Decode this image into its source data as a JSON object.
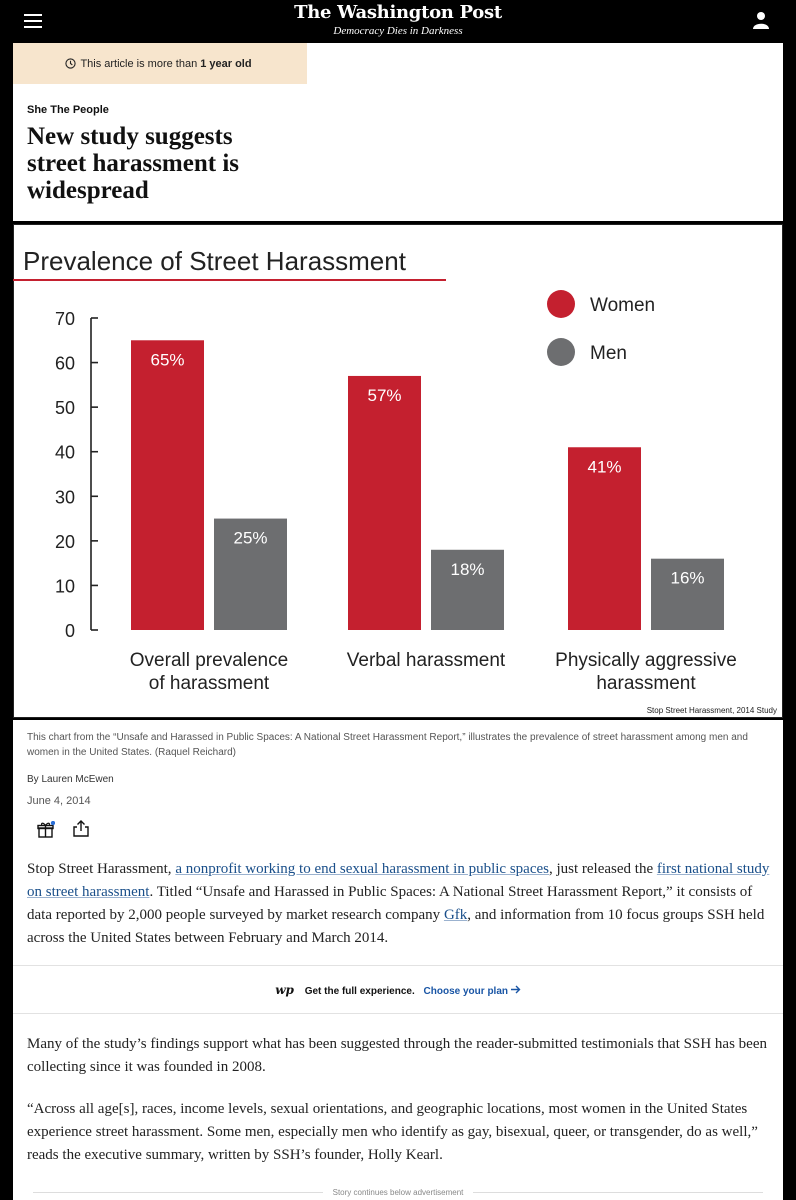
{
  "header": {
    "logo": "The Washington Post",
    "tagline": "Democracy Dies in Darkness"
  },
  "article": {
    "age_notice_prefix": "This article is more than",
    "age_notice_bold": "1 year old",
    "section": "She The People",
    "headline_lines": [
      "New study suggests",
      "street harassment is",
      "widespread"
    ],
    "caption": "This chart from the “Unsafe and Harassed in Public Spaces: A National Street Harassment Report,” illustrates the prevalence of street harassment among men and women in the United States. (Raquel Reichard)",
    "byline": "By Lauren McEwen",
    "date": "June 4, 2014",
    "p1": [
      {
        "t": "Stop Street Harassment, "
      },
      {
        "t": "a nonprofit working to end sexual harassment in public spaces",
        "link": true
      },
      {
        "t": ", just released the "
      },
      {
        "t": "first national study on street harassment",
        "link": true
      },
      {
        "t": ". Titled “Unsafe and Harassed in Public Spaces: A National Street Harassment Report,” it consists of data reported by 2,000 people surveyed by market research company "
      },
      {
        "t": "Gfk",
        "link": true
      },
      {
        "t": ", and information from 10 focus groups SSH held across the United States between February and March 2014."
      }
    ],
    "p2": "Many of the study’s findings support what has been suggested through the reader-submitted testimonials that SSH has been collecting since it was founded in 2008.",
    "p3": "“Across all age[s], races, income levels, sexual orientations, and geographic locations, most women in the United States experience street harassment. Some men, especially men who identify as gay, bisexual, queer, or transgender, do as well,” reads the executive summary, written by SSH’s founder, Holly Kearl."
  },
  "promo": {
    "mark": "wp",
    "text": "Get the full experience.",
    "cta": "Choose your plan"
  },
  "ad_label": "Story continues below advertisement",
  "icons": {
    "menu": "hamburger-icon",
    "profile": "user-icon",
    "clock": "clock-icon",
    "gift": "gift-icon",
    "share": "share-icon",
    "arrow": "arrow-right-icon"
  },
  "colors": {
    "women": "#c4202f",
    "men": "#6d6e70",
    "link": "#1a4f8a",
    "cta": "#1955a5",
    "notice_bg": "#f7e5cd"
  },
  "chart_data": {
    "type": "bar",
    "title": "Prevalence of Street Harassment",
    "categories": [
      [
        "Overall prevalence",
        "of harassment"
      ],
      [
        "Verbal harassment"
      ],
      [
        "Physically aggressive",
        "harassment"
      ]
    ],
    "series": [
      {
        "name": "Women",
        "values": [
          65,
          57,
          41
        ],
        "labels": [
          "65%",
          "57%",
          "41%"
        ],
        "color": "#c4202f"
      },
      {
        "name": "Men",
        "values": [
          25,
          18,
          16
        ],
        "labels": [
          "25%",
          "18%",
          "16%"
        ],
        "color": "#6d6e70"
      }
    ],
    "yticks": [
      "0",
      "10",
      "20",
      "30",
      "40",
      "50",
      "60",
      "70"
    ],
    "ylim": [
      0,
      70
    ],
    "legend_position": "top-right",
    "source": "Stop Street Harassment, 2014 Study"
  }
}
